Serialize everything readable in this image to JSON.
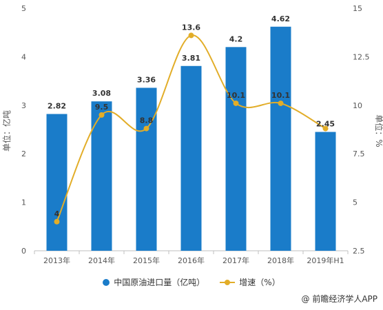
{
  "chart_data": {
    "type": "bar+line",
    "categories": [
      "2013年",
      "2014年",
      "2015年",
      "2016年",
      "2017年",
      "2018年",
      "2019年H1"
    ],
    "series": [
      {
        "name": "中国原油进口量（亿吨）",
        "type": "bar",
        "axis": "left",
        "values": [
          2.82,
          3.08,
          3.36,
          3.81,
          4.2,
          4.62,
          2.45
        ],
        "labels": [
          "2.82",
          "3.08",
          "3.36",
          "3.81",
          "4.2",
          "4.62",
          "2.45"
        ],
        "color": "#1a7cc9"
      },
      {
        "name": "增速（%）",
        "type": "line",
        "axis": "right",
        "values": [
          4,
          9.5,
          8.8,
          13.6,
          10.1,
          10.1,
          8.8
        ],
        "labels": [
          "4",
          "9.5",
          "8.8",
          "13.6",
          "10.1",
          "10.1",
          ""
        ],
        "color": "#e2ad28"
      }
    ],
    "y_left": {
      "label": "单位：亿吨",
      "ylim": [
        0,
        5
      ],
      "ticks": [
        "0",
        "1",
        "2",
        "3",
        "4",
        "5"
      ]
    },
    "y_right": {
      "label": "单位：%",
      "ylim": [
        2.5,
        15
      ],
      "ticks": [
        "2.5",
        "5",
        "7.5",
        "10",
        "12.5",
        "15"
      ]
    },
    "grid": false,
    "legend": "bottom"
  },
  "legend": {
    "bar_label": "中国原油进口量（亿吨）",
    "line_label": "增速（%）"
  },
  "source": "@ 前瞻经济学人APP"
}
